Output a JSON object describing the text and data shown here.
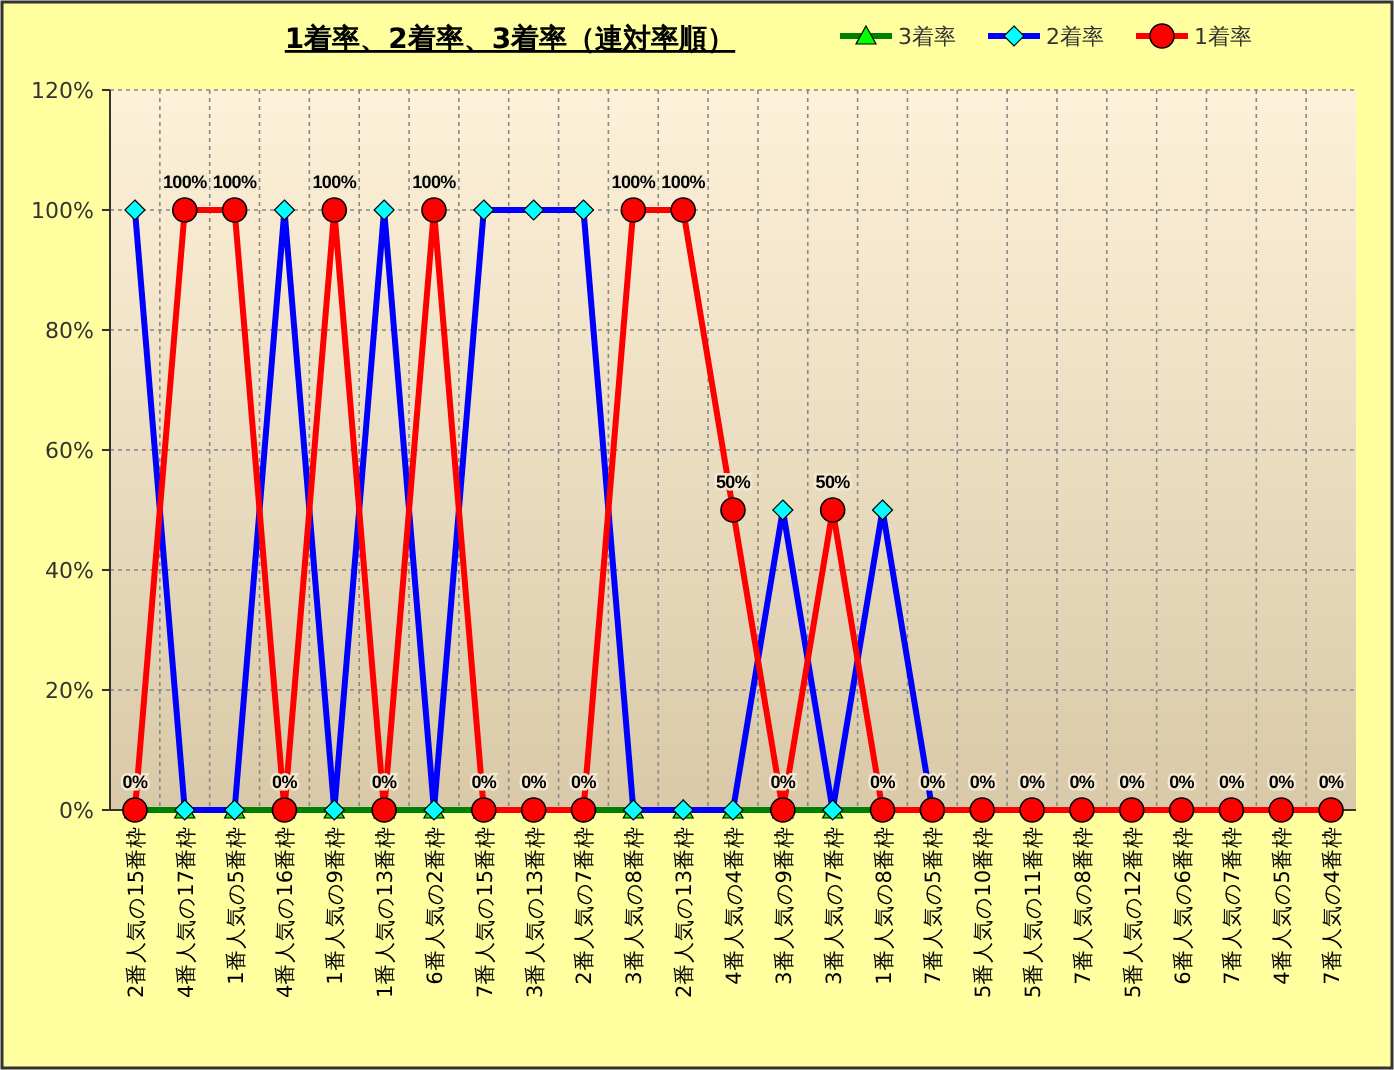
{
  "chart_data": {
    "type": "line",
    "title": "1着率、2着率、3着率（連対率順）",
    "categories": [
      "2番人気の15番枠",
      "4番人気の17番枠",
      "1番人気の5番枠",
      "4番人気の16番枠",
      "1番人気の9番枠",
      "1番人気の13番枠",
      "6番人気の2番枠",
      "7番人気の15番枠",
      "3番人気の13番枠",
      "2番人気の7番枠",
      "3番人気の8番枠",
      "2番人気の13番枠",
      "4番人気の4番枠",
      "3番人気の9番枠",
      "3番人気の7番枠",
      "1番人気の8番枠",
      "7番人気の5番枠",
      "5番人気の10番枠",
      "5番人気の11番枠",
      "7番人気の8番枠",
      "5番人気の12番枠",
      "6番人気の6番枠",
      "7番人気の7番枠",
      "4番人気の5番枠",
      "7番人気の4番枠"
    ],
    "series": [
      {
        "name": "3着率",
        "color": "#008000",
        "marker": "triangle",
        "values": [
          0,
          0,
          0,
          0,
          0,
          0,
          0,
          0,
          0,
          0,
          0,
          0,
          0,
          0,
          0,
          0,
          0,
          null,
          null,
          null,
          null,
          null,
          null,
          null,
          null
        ]
      },
      {
        "name": "2着率",
        "color": "#0000ff",
        "marker": "diamond",
        "values": [
          100,
          0,
          0,
          100,
          0,
          100,
          0,
          100,
          100,
          100,
          0,
          0,
          0,
          50,
          0,
          50,
          0,
          0,
          null,
          null,
          null,
          null,
          null,
          null,
          null
        ]
      },
      {
        "name": "1着率",
        "color": "#ff0000",
        "marker": "circle",
        "values": [
          0,
          100,
          100,
          0,
          100,
          0,
          100,
          0,
          0,
          0,
          100,
          100,
          50,
          0,
          50,
          0,
          0,
          0,
          0,
          0,
          0,
          0,
          0,
          0,
          0
        ],
        "value_labels": [
          "0%",
          "100%",
          "100%",
          "0%",
          "100%",
          "0%",
          "100%",
          "0%",
          "0%",
          "0%",
          "100%",
          "100%",
          "50%",
          "0%",
          "50%",
          "0%",
          "0%",
          "0%",
          "0%",
          "0%",
          "0%",
          "0%",
          "0%",
          "0%",
          "0%"
        ]
      }
    ],
    "ylim": [
      0,
      120
    ],
    "yticks": [
      {
        "value": 0,
        "label": "0%"
      },
      {
        "value": 20,
        "label": "20%"
      },
      {
        "value": 40,
        "label": "40%"
      },
      {
        "value": 60,
        "label": "60%"
      },
      {
        "value": 80,
        "label": "80%"
      },
      {
        "value": 100,
        "label": "100%"
      },
      {
        "value": 120,
        "label": "120%"
      }
    ],
    "grid": true,
    "legend": "top right"
  }
}
